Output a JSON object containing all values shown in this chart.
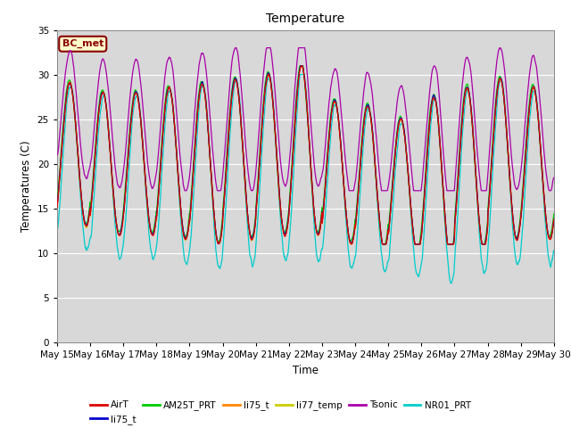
{
  "title": "Temperature",
  "xlabel": "Time",
  "ylabel": "Temperatures (C)",
  "ylim": [
    0,
    35
  ],
  "yticks": [
    0,
    5,
    10,
    15,
    20,
    25,
    30,
    35
  ],
  "date_labels": [
    "May 15",
    "May 16",
    "May 17",
    "May 18",
    "May 19",
    "May 20",
    "May 21",
    "May 22",
    "May 23",
    "May 24",
    "May 25",
    "May 26",
    "May 27",
    "May 28",
    "May 29",
    "May 30"
  ],
  "annotation_text": "BC_met",
  "annotation_bg": "#ffffcc",
  "annotation_border": "#8b0000",
  "annotation_text_color": "#8b0000",
  "legend_entries": [
    {
      "label": "AirT",
      "color": "#dd0000"
    },
    {
      "label": "li75_t",
      "color": "#0000cc"
    },
    {
      "label": "AM25T_PRT",
      "color": "#00cc00"
    },
    {
      "label": "li75_t",
      "color": "#ff8800"
    },
    {
      "label": "li77_temp",
      "color": "#cccc00"
    },
    {
      "label": "Tsonic",
      "color": "#aa00aa"
    },
    {
      "label": "NR01_PRT",
      "color": "#00cccc"
    }
  ],
  "fig_bg": "#ffffff",
  "plot_bg": "#d8d8d8",
  "grid_color": "#ffffff",
  "figsize": [
    6.4,
    4.8
  ],
  "dpi": 100
}
